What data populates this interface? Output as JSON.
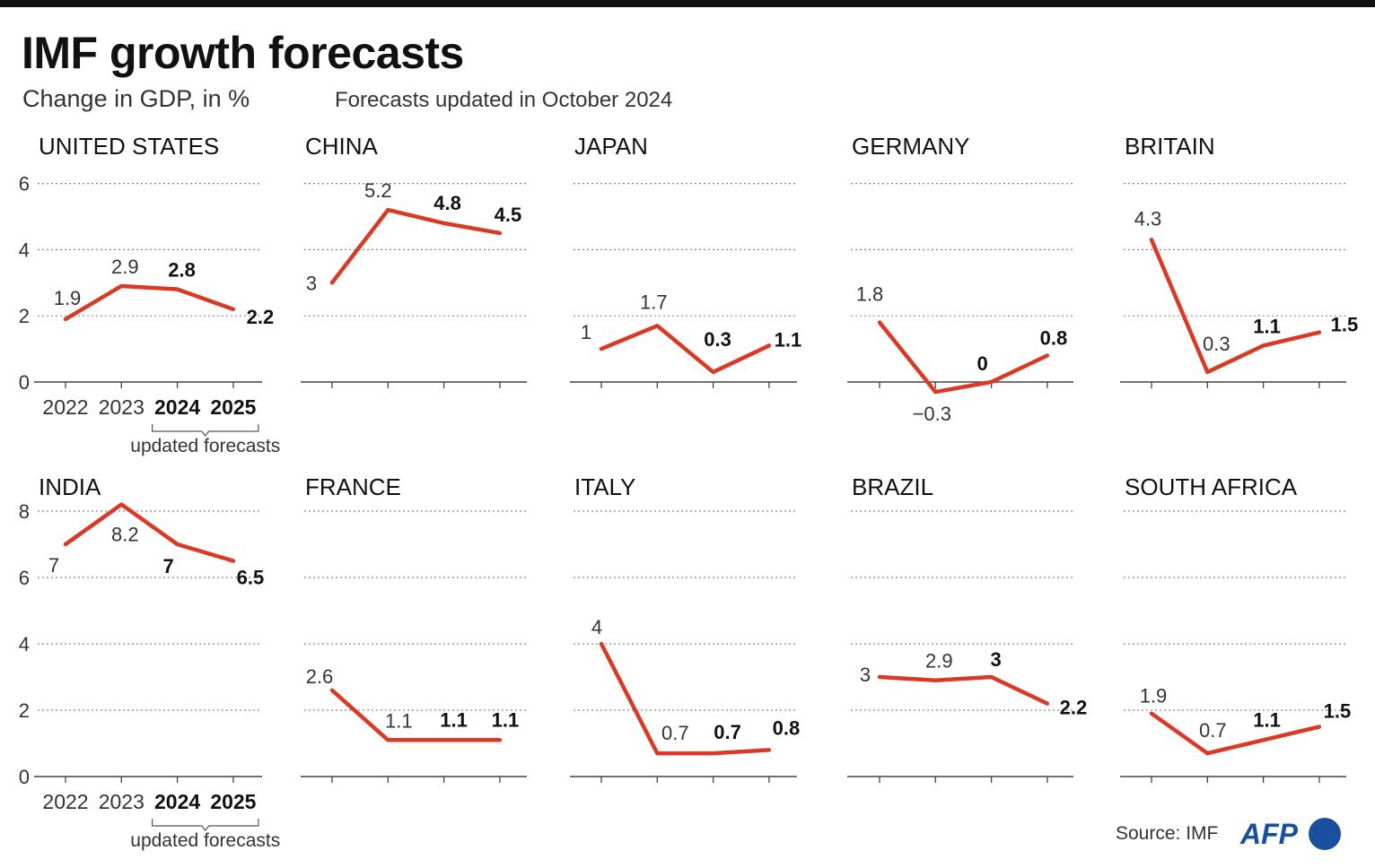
{
  "title": "IMF growth forecasts",
  "subtitle": "Change in GDP, in %",
  "note": "Forecasts updated in October 2024",
  "source": "Source: IMF",
  "logo": "AFP",
  "forecast_label": "updated forecasts",
  "colors": {
    "line": "#d93a25",
    "logo": "#1a4fa0"
  },
  "chart_data": [
    {
      "type": "line",
      "title": "UNITED STATES",
      "categories": [
        "2022",
        "2023",
        "2024",
        "2025"
      ],
      "values": [
        1.9,
        2.9,
        2.8,
        2.2
      ],
      "labels": [
        "1.9",
        "2.9",
        "2.8",
        "2.2"
      ],
      "yticks": [
        "0",
        "2",
        "4",
        "6"
      ],
      "ylim": [
        0,
        6
      ],
      "forecast": [
        "2024",
        "2025"
      ],
      "grid": true
    },
    {
      "type": "line",
      "title": "CHINA",
      "categories": [
        "2022",
        "2023",
        "2024",
        "2025"
      ],
      "values": [
        3,
        5.2,
        4.8,
        4.5
      ],
      "labels": [
        "3",
        "5.2",
        "4.8",
        "4.5"
      ],
      "ylim": [
        0,
        6
      ],
      "forecast": [
        "2024",
        "2025"
      ],
      "grid": true
    },
    {
      "type": "line",
      "title": "JAPAN",
      "categories": [
        "2022",
        "2023",
        "2024",
        "2025"
      ],
      "values": [
        1,
        1.7,
        0.3,
        1.1
      ],
      "labels": [
        "1",
        "1.7",
        "0.3",
        "1.1"
      ],
      "ylim": [
        0,
        6
      ],
      "forecast": [
        "2024",
        "2025"
      ],
      "grid": true
    },
    {
      "type": "line",
      "title": "GERMANY",
      "categories": [
        "2022",
        "2023",
        "2024",
        "2025"
      ],
      "values": [
        1.8,
        -0.3,
        0,
        0.8
      ],
      "labels": [
        "1.8",
        "−0.3",
        "0",
        "0.8"
      ],
      "ylim": [
        0,
        6
      ],
      "forecast": [
        "2024",
        "2025"
      ],
      "grid": true
    },
    {
      "type": "line",
      "title": "BRITAIN",
      "categories": [
        "2022",
        "2023",
        "2024",
        "2025"
      ],
      "values": [
        4.3,
        0.3,
        1.1,
        1.5
      ],
      "labels": [
        "4.3",
        "0.3",
        "1.1",
        "1.5"
      ],
      "ylim": [
        0,
        6
      ],
      "forecast": [
        "2024",
        "2025"
      ],
      "grid": true
    },
    {
      "type": "line",
      "title": "INDIA",
      "categories": [
        "2022",
        "2023",
        "2024",
        "2025"
      ],
      "values": [
        7,
        8.2,
        7,
        6.5
      ],
      "labels": [
        "7",
        "8.2",
        "7",
        "6.5"
      ],
      "yticks": [
        "0",
        "2",
        "4",
        "6",
        "8"
      ],
      "ylim": [
        0,
        8
      ],
      "forecast": [
        "2024",
        "2025"
      ],
      "grid": true
    },
    {
      "type": "line",
      "title": "FRANCE",
      "categories": [
        "2022",
        "2023",
        "2024",
        "2025"
      ],
      "values": [
        2.6,
        1.1,
        1.1,
        1.1
      ],
      "labels": [
        "2.6",
        "1.1",
        "1.1",
        "1.1"
      ],
      "ylim": [
        0,
        8
      ],
      "forecast": [
        "2024",
        "2025"
      ],
      "grid": true
    },
    {
      "type": "line",
      "title": "ITALY",
      "categories": [
        "2022",
        "2023",
        "2024",
        "2025"
      ],
      "values": [
        4,
        0.7,
        0.7,
        0.8
      ],
      "labels": [
        "4",
        "0.7",
        "0.7",
        "0.8"
      ],
      "ylim": [
        0,
        8
      ],
      "forecast": [
        "2024",
        "2025"
      ],
      "grid": true
    },
    {
      "type": "line",
      "title": "BRAZIL",
      "categories": [
        "2022",
        "2023",
        "2024",
        "2025"
      ],
      "values": [
        3,
        2.9,
        3,
        2.2
      ],
      "labels": [
        "3",
        "2.9",
        "3",
        "2.2"
      ],
      "ylim": [
        0,
        8
      ],
      "forecast": [
        "2024",
        "2025"
      ],
      "grid": true
    },
    {
      "type": "line",
      "title": "SOUTH AFRICA",
      "categories": [
        "2022",
        "2023",
        "2024",
        "2025"
      ],
      "values": [
        1.9,
        0.7,
        1.1,
        1.5
      ],
      "labels": [
        "1.9",
        "0.7",
        "1.1",
        "1.5"
      ],
      "ylim": [
        0,
        8
      ],
      "forecast": [
        "2024",
        "2025"
      ],
      "grid": true
    }
  ]
}
